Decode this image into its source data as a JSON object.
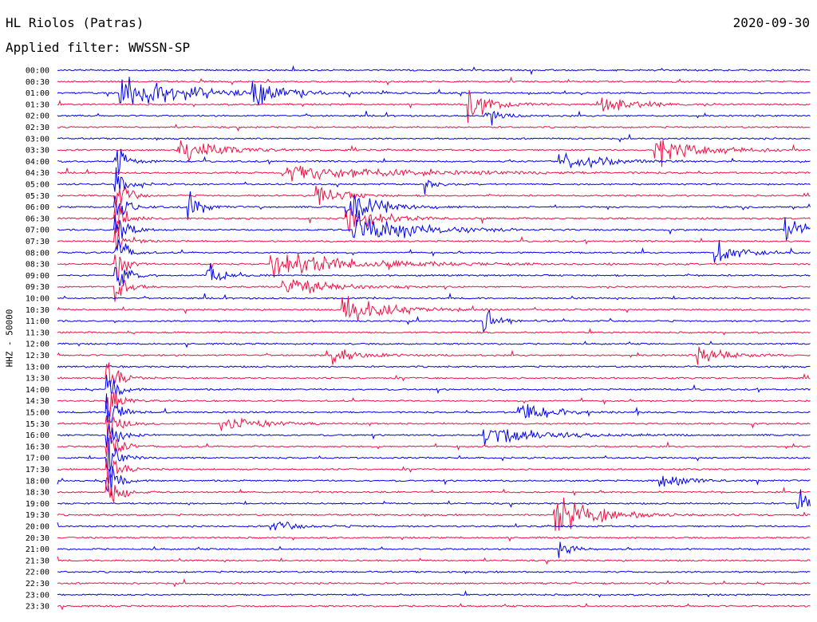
{
  "header": {
    "title": "HL Riolos (Patras)",
    "date": "2020-09-30",
    "filter": "Applied filter: WWSSN-SP"
  },
  "chart_data": {
    "type": "line",
    "ylabel": "HHZ - 50000",
    "rows": [
      "00:00",
      "00:30",
      "01:00",
      "01:30",
      "02:00",
      "02:30",
      "03:00",
      "03:30",
      "04:00",
      "04:30",
      "05:00",
      "05:30",
      "06:00",
      "06:30",
      "07:00",
      "07:30",
      "08:00",
      "08:30",
      "09:00",
      "09:30",
      "10:00",
      "10:30",
      "11:00",
      "11:30",
      "12:00",
      "12:30",
      "13:00",
      "13:30",
      "14:00",
      "14:30",
      "15:00",
      "15:30",
      "16:00",
      "16:30",
      "17:00",
      "17:30",
      "18:00",
      "18:30",
      "19:00",
      "19:30",
      "20:00",
      "20:30",
      "21:00",
      "21:30",
      "22:00",
      "22:30",
      "23:00",
      "23:30"
    ],
    "x_range_minutes": [
      0,
      30
    ],
    "colors": [
      "#0000ee",
      "#ee1144"
    ],
    "events": [
      {
        "row": 2,
        "minute": 2.5,
        "amp": 1.0,
        "dur": 2.5
      },
      {
        "row": 2,
        "minute": 8.0,
        "amp": 0.5,
        "dur": 1.0
      },
      {
        "row": 2,
        "minute": 7.8,
        "amp": 0.9,
        "dur": 0.2
      },
      {
        "row": 3,
        "minute": 16.4,
        "amp": 0.9,
        "dur": 0.8
      },
      {
        "row": 3,
        "minute": 21.7,
        "amp": 0.5,
        "dur": 1.2
      },
      {
        "row": 4,
        "minute": 17.0,
        "amp": 0.5,
        "dur": 0.6
      },
      {
        "row": 7,
        "minute": 4.8,
        "amp": 0.7,
        "dur": 1.5
      },
      {
        "row": 7,
        "minute": 23.8,
        "amp": 1.0,
        "dur": 1.5
      },
      {
        "row": 8,
        "minute": 2.3,
        "amp": 1.2,
        "dur": 0.4
      },
      {
        "row": 8,
        "minute": 20.0,
        "amp": 0.6,
        "dur": 1.5
      },
      {
        "row": 9,
        "minute": 9.0,
        "amp": 0.5,
        "dur": 4.0
      },
      {
        "row": 10,
        "minute": 2.3,
        "amp": 1.2,
        "dur": 0.4
      },
      {
        "row": 10,
        "minute": 14.6,
        "amp": 0.6,
        "dur": 0.3
      },
      {
        "row": 11,
        "minute": 2.3,
        "amp": 1.2,
        "dur": 0.4
      },
      {
        "row": 11,
        "minute": 10.3,
        "amp": 0.8,
        "dur": 0.8
      },
      {
        "row": 12,
        "minute": 2.3,
        "amp": 1.2,
        "dur": 0.4
      },
      {
        "row": 12,
        "minute": 5.2,
        "amp": 1.0,
        "dur": 0.4
      },
      {
        "row": 12,
        "minute": 11.5,
        "amp": 1.0,
        "dur": 1.2
      },
      {
        "row": 13,
        "minute": 2.3,
        "amp": 1.2,
        "dur": 0.4
      },
      {
        "row": 13,
        "minute": 11.5,
        "amp": 0.9,
        "dur": 1.2
      },
      {
        "row": 14,
        "minute": 2.3,
        "amp": 1.2,
        "dur": 0.4
      },
      {
        "row": 14,
        "minute": 11.8,
        "amp": 1.2,
        "dur": 2.0
      },
      {
        "row": 14,
        "minute": 29.0,
        "amp": 0.9,
        "dur": 0.8
      },
      {
        "row": 15,
        "minute": 2.3,
        "amp": 1.2,
        "dur": 0.4
      },
      {
        "row": 16,
        "minute": 2.3,
        "amp": 1.2,
        "dur": 0.4
      },
      {
        "row": 16,
        "minute": 26.2,
        "amp": 0.7,
        "dur": 1.0
      },
      {
        "row": 17,
        "minute": 2.3,
        "amp": 1.2,
        "dur": 0.4
      },
      {
        "row": 17,
        "minute": 8.5,
        "amp": 0.8,
        "dur": 3.0
      },
      {
        "row": 18,
        "minute": 2.3,
        "amp": 1.2,
        "dur": 0.4
      },
      {
        "row": 18,
        "minute": 6.0,
        "amp": 0.8,
        "dur": 0.5
      },
      {
        "row": 19,
        "minute": 2.3,
        "amp": 1.2,
        "dur": 0.4
      },
      {
        "row": 19,
        "minute": 9.0,
        "amp": 0.6,
        "dur": 1.5
      },
      {
        "row": 21,
        "minute": 11.3,
        "amp": 1.0,
        "dur": 1.5
      },
      {
        "row": 22,
        "minute": 17.0,
        "amp": 0.9,
        "dur": 0.5
      },
      {
        "row": 25,
        "minute": 11.0,
        "amp": 0.5,
        "dur": 1.0
      },
      {
        "row": 25,
        "minute": 25.5,
        "amp": 0.6,
        "dur": 1.0
      },
      {
        "row": 27,
        "minute": 2.0,
        "amp": 1.2,
        "dur": 0.4
      },
      {
        "row": 28,
        "minute": 2.0,
        "amp": 1.2,
        "dur": 0.4
      },
      {
        "row": 29,
        "minute": 2.0,
        "amp": 1.2,
        "dur": 0.4
      },
      {
        "row": 30,
        "minute": 2.0,
        "amp": 1.2,
        "dur": 0.4
      },
      {
        "row": 30,
        "minute": 18.4,
        "amp": 0.7,
        "dur": 1.0
      },
      {
        "row": 31,
        "minute": 2.0,
        "amp": 1.2,
        "dur": 0.4
      },
      {
        "row": 31,
        "minute": 6.5,
        "amp": 0.5,
        "dur": 1.5
      },
      {
        "row": 32,
        "minute": 2.0,
        "amp": 1.2,
        "dur": 0.4
      },
      {
        "row": 32,
        "minute": 17.0,
        "amp": 0.6,
        "dur": 2.0
      },
      {
        "row": 33,
        "minute": 2.0,
        "amp": 1.2,
        "dur": 0.4
      },
      {
        "row": 34,
        "minute": 2.0,
        "amp": 1.2,
        "dur": 0.4
      },
      {
        "row": 35,
        "minute": 2.0,
        "amp": 1.2,
        "dur": 0.4
      },
      {
        "row": 36,
        "minute": 2.0,
        "amp": 1.2,
        "dur": 0.4
      },
      {
        "row": 36,
        "minute": 24.0,
        "amp": 0.6,
        "dur": 0.8
      },
      {
        "row": 37,
        "minute": 2.0,
        "amp": 1.2,
        "dur": 0.4
      },
      {
        "row": 38,
        "minute": 29.5,
        "amp": 0.8,
        "dur": 1.0
      },
      {
        "row": 39,
        "minute": 19.8,
        "amp": 1.3,
        "dur": 1.5
      },
      {
        "row": 40,
        "minute": 8.5,
        "amp": 0.3,
        "dur": 1.0
      },
      {
        "row": 42,
        "minute": 20.0,
        "amp": 0.5,
        "dur": 0.5
      }
    ]
  }
}
